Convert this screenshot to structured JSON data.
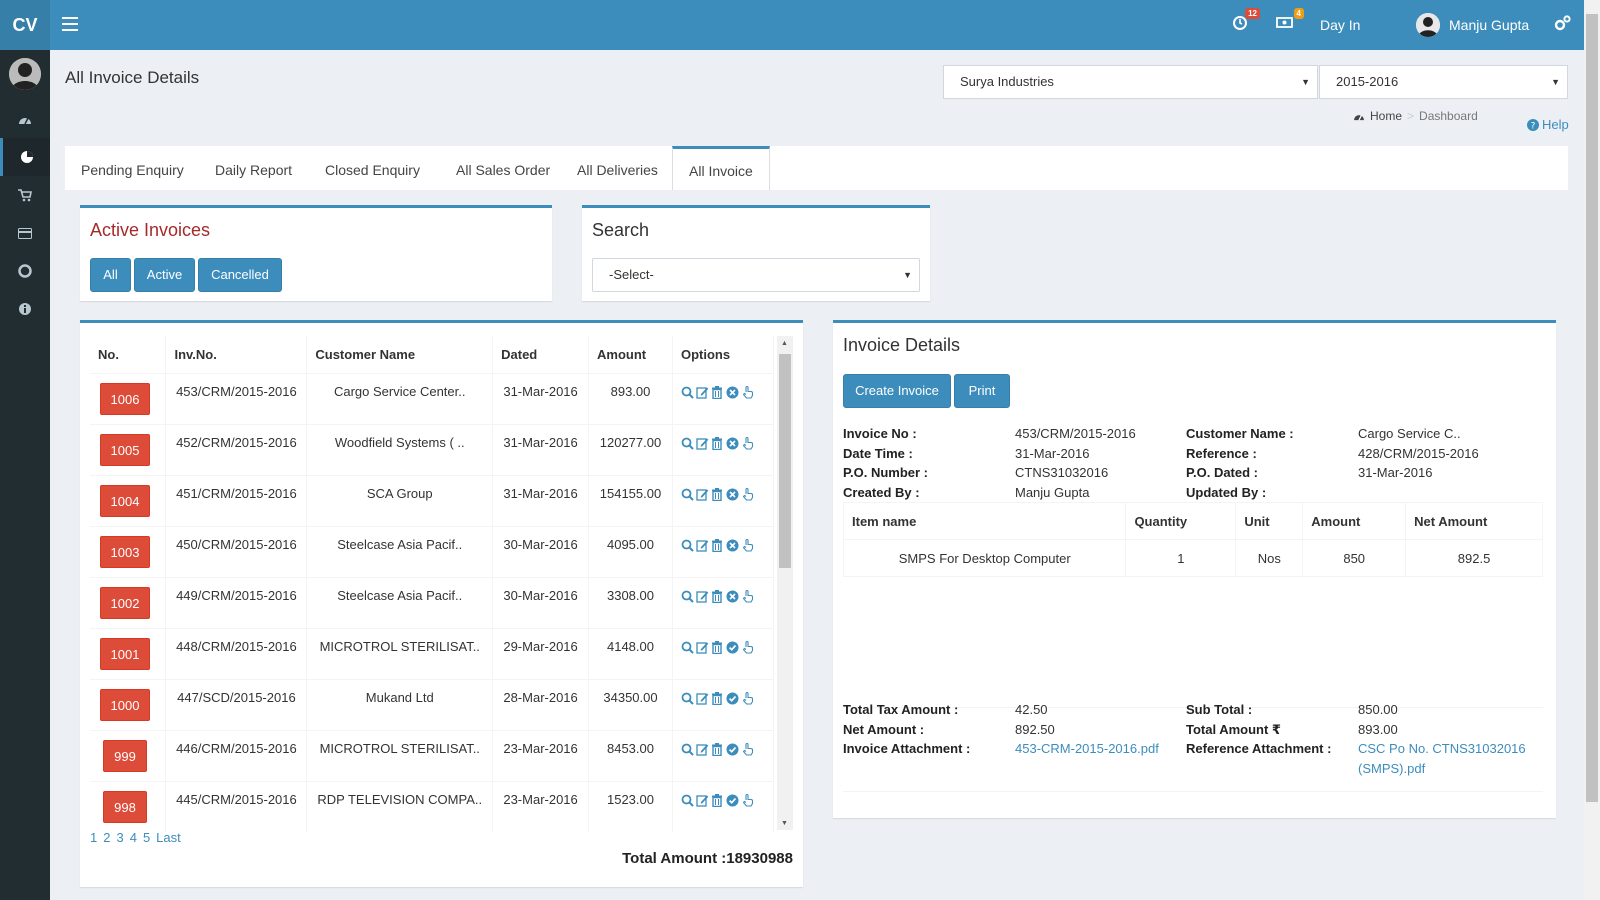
{
  "header": {
    "logo": "CV",
    "notifications_count": "12",
    "messages_count": "4",
    "day_in_label": "Day In",
    "user_name": "Manju Gupta"
  },
  "page": {
    "title": "All Invoice Details",
    "company_select": "Surya Industries",
    "year_select": "2015-2016",
    "breadcrumb_home": "Home",
    "breadcrumb_current": "Dashboard",
    "help_label": "Help"
  },
  "tabs": [
    {
      "label": "Pending Enquiry"
    },
    {
      "label": "Daily Report"
    },
    {
      "label": "Closed Enquiry"
    },
    {
      "label": "All Sales Order"
    },
    {
      "label": "All Deliveries"
    },
    {
      "label": "All Invoice"
    }
  ],
  "active_invoices": {
    "title": "Active Invoices",
    "buttons": [
      "All",
      "Active",
      "Cancelled"
    ]
  },
  "search": {
    "title": "Search",
    "select_value": "-Select-"
  },
  "invoice_table": {
    "headers": [
      "No.",
      "Inv.No.",
      "Customer Name",
      "Dated",
      "Amount",
      "Options"
    ],
    "rows": [
      {
        "no": "1006",
        "inv": "453/CRM/2015-2016",
        "customer": "Cargo Service Center..",
        "dated": "31-Mar-2016",
        "amount": "893.00",
        "status": "cancel"
      },
      {
        "no": "1005",
        "inv": "452/CRM/2015-2016",
        "customer": "Woodfield Systems ( ..",
        "dated": "31-Mar-2016",
        "amount": "120277.00",
        "status": "cancel"
      },
      {
        "no": "1004",
        "inv": "451/CRM/2015-2016",
        "customer": "SCA Group",
        "dated": "31-Mar-2016",
        "amount": "154155.00",
        "status": "cancel"
      },
      {
        "no": "1003",
        "inv": "450/CRM/2015-2016",
        "customer": "Steelcase Asia Pacif..",
        "dated": "30-Mar-2016",
        "amount": "4095.00",
        "status": "cancel"
      },
      {
        "no": "1002",
        "inv": "449/CRM/2015-2016",
        "customer": "Steelcase Asia Pacif..",
        "dated": "30-Mar-2016",
        "amount": "3308.00",
        "status": "cancel"
      },
      {
        "no": "1001",
        "inv": "448/CRM/2015-2016",
        "customer": "MICROTROL STERILISAT..",
        "dated": "29-Mar-2016",
        "amount": "4148.00",
        "status": "ok"
      },
      {
        "no": "1000",
        "inv": "447/SCD/2015-2016",
        "customer": "Mukand Ltd",
        "dated": "28-Mar-2016",
        "amount": "34350.00",
        "status": "ok"
      },
      {
        "no": "999",
        "inv": "446/CRM/2015-2016",
        "customer": "MICROTROL STERILISAT..",
        "dated": "23-Mar-2016",
        "amount": "8453.00",
        "status": "ok"
      },
      {
        "no": "998",
        "inv": "445/CRM/2015-2016",
        "customer": "RDP TELEVISION COMPA..",
        "dated": "23-Mar-2016",
        "amount": "1523.00",
        "status": "ok"
      }
    ],
    "pages": [
      "1",
      "2",
      "3",
      "4",
      "5",
      "Last"
    ],
    "total_amount": "Total Amount :18930988"
  },
  "invoice_details": {
    "title": "Invoice Details",
    "create_label": "Create Invoice",
    "print_label": "Print",
    "fields_left": [
      {
        "label": "Invoice No :",
        "value": "453/CRM/2015-2016"
      },
      {
        "label": "Date Time :",
        "value": "31-Mar-2016"
      },
      {
        "label": "P.O. Number :",
        "value": "CTNS31032016"
      },
      {
        "label": "Created By :",
        "value": "Manju Gupta"
      }
    ],
    "fields_right": [
      {
        "label": "Customer Name :",
        "value": "Cargo Service C.."
      },
      {
        "label": "Reference :",
        "value": "428/CRM/2015-2016"
      },
      {
        "label": "P.O. Dated :",
        "value": "31-Mar-2016"
      },
      {
        "label": "Updated By :",
        "value": ""
      }
    ],
    "items_headers": [
      "Item name",
      "Quantity",
      "Unit",
      "Amount",
      "Net Amount"
    ],
    "items": [
      {
        "name": "SMPS For Desktop Computer",
        "qty": "1",
        "unit": "Nos",
        "amount": "850",
        "net": "892.5"
      }
    ],
    "totals_left": [
      {
        "label": "Total Tax Amount :",
        "value": "42.50"
      },
      {
        "label": "Net Amount :",
        "value": "892.50"
      },
      {
        "label": "Invoice Attachment :",
        "value": "453-CRM-2015-2016.pdf"
      }
    ],
    "totals_right": [
      {
        "label": "Sub Total :",
        "value": "850.00"
      },
      {
        "label": "Total Amount ₹",
        "value": "893.00"
      },
      {
        "label": "Reference Attachment :",
        "value": "CSC Po No. CTNS31032016",
        "value2": "(SMPS).pdf"
      }
    ]
  }
}
